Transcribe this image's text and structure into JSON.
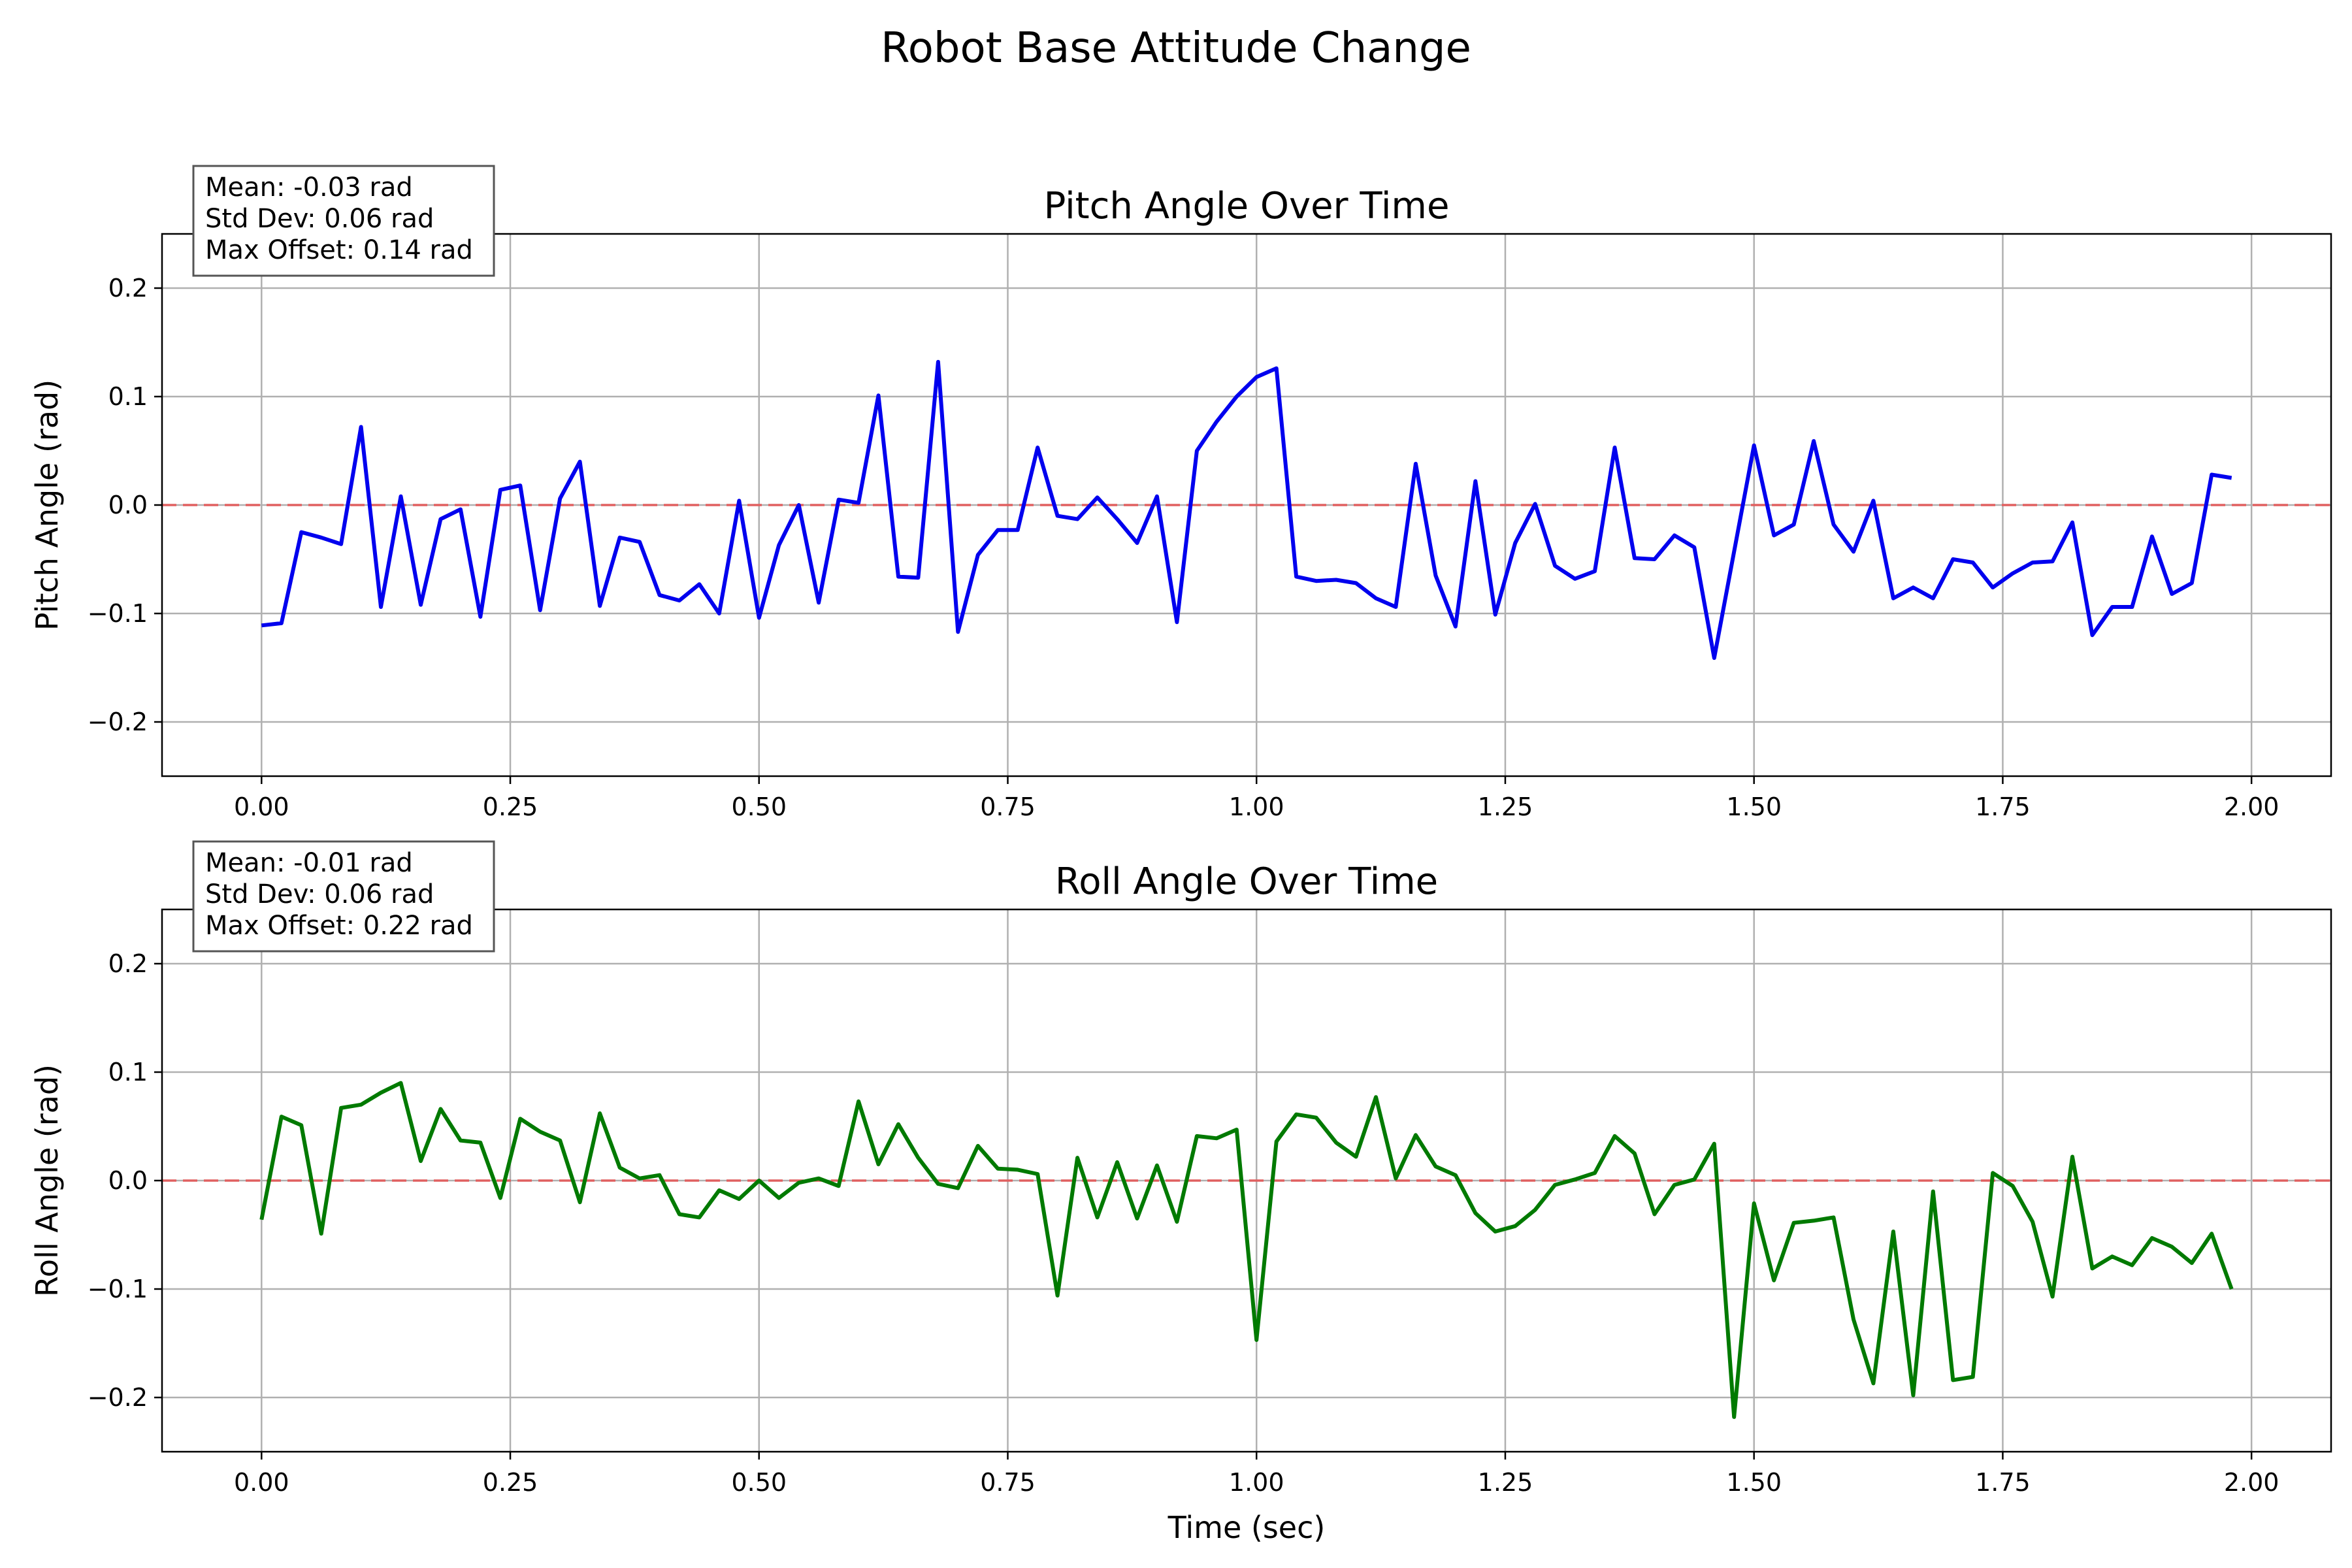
{
  "figure": {
    "title": "Robot Base Attitude Change",
    "xlabel": "Time (sec)"
  },
  "chart_data": [
    {
      "type": "line",
      "title": "Pitch Angle Over Time",
      "xlabel": "",
      "ylabel": "Pitch Angle (rad)",
      "xlim": [
        -0.1,
        2.08
      ],
      "ylim": [
        -0.25,
        0.25
      ],
      "x_ticks": [
        "0.00",
        "0.25",
        "0.50",
        "0.75",
        "1.00",
        "1.25",
        "1.50",
        "1.75",
        "2.00"
      ],
      "y_ticks": [
        "-0.2",
        "-0.1",
        "0.0",
        "0.1",
        "0.2"
      ],
      "grid": true,
      "reference_line": {
        "y": 0.0,
        "color": "#e06060",
        "style": "dashed"
      },
      "stats_box": [
        "Mean: -0.03 rad",
        "Std Dev: 0.06 rad",
        "Max Offset: 0.14 rad"
      ],
      "series": [
        {
          "color": "#0000ee",
          "x_start": 0.0,
          "x_step": 0.02,
          "values": [
            -0.111,
            -0.109,
            -0.025,
            -0.03,
            -0.036,
            0.072,
            -0.094,
            0.008,
            -0.092,
            -0.013,
            -0.004,
            -0.103,
            0.014,
            0.018,
            -0.097,
            0.006,
            0.04,
            -0.093,
            -0.03,
            -0.034,
            -0.083,
            -0.088,
            -0.073,
            -0.1,
            0.004,
            -0.104,
            -0.037,
            0.0,
            -0.09,
            0.005,
            0.002,
            0.101,
            -0.066,
            -0.067,
            0.132,
            -0.117,
            -0.046,
            -0.023,
            -0.023,
            0.053,
            -0.01,
            -0.013,
            0.007,
            -0.013,
            -0.035,
            0.008,
            -0.108,
            0.05,
            0.077,
            0.1,
            0.118,
            0.126,
            -0.066,
            -0.07,
            -0.069,
            -0.072,
            -0.086,
            -0.094,
            0.038,
            -0.065,
            -0.112,
            0.022,
            -0.101,
            -0.035,
            0.001,
            -0.056,
            -0.068,
            -0.061,
            0.053,
            -0.049,
            -0.05,
            -0.028,
            -0.039,
            -0.141,
            -0.043,
            0.055,
            -0.028,
            -0.018,
            0.059,
            -0.018,
            -0.043,
            0.004,
            -0.086,
            -0.076,
            -0.086,
            -0.05,
            -0.053,
            -0.076,
            -0.063,
            -0.053,
            -0.052,
            -0.016,
            -0.12,
            -0.094,
            -0.094,
            -0.029,
            -0.082,
            -0.072,
            0.028,
            0.025
          ]
        }
      ]
    },
    {
      "type": "line",
      "title": "Roll Angle Over Time",
      "xlabel": "Time (sec)",
      "ylabel": "Roll Angle (rad)",
      "xlim": [
        -0.1,
        2.08
      ],
      "ylim": [
        -0.25,
        0.25
      ],
      "x_ticks": [
        "0.00",
        "0.25",
        "0.50",
        "0.75",
        "1.00",
        "1.25",
        "1.50",
        "1.75",
        "2.00"
      ],
      "y_ticks": [
        "-0.2",
        "-0.1",
        "0.0",
        "0.1",
        "0.2"
      ],
      "grid": true,
      "reference_line": {
        "y": 0.0,
        "color": "#e06060",
        "style": "dashed"
      },
      "stats_box": [
        "Mean: -0.01 rad",
        "Std Dev: 0.06 rad",
        "Max Offset: 0.22 rad"
      ],
      "series": [
        {
          "color": "#007a00",
          "x_start": 0.0,
          "x_step": 0.02,
          "values": [
            -0.036,
            0.059,
            0.051,
            -0.049,
            0.067,
            0.07,
            0.081,
            0.09,
            0.018,
            0.066,
            0.037,
            0.035,
            -0.016,
            0.057,
            0.045,
            0.037,
            -0.02,
            0.062,
            0.012,
            0.002,
            0.005,
            -0.031,
            -0.034,
            -0.009,
            -0.017,
            0.0,
            -0.016,
            -0.002,
            0.002,
            -0.005,
            0.073,
            0.015,
            0.052,
            0.021,
            -0.003,
            -0.007,
            0.032,
            0.011,
            0.01,
            0.006,
            -0.106,
            0.021,
            -0.034,
            0.017,
            -0.035,
            0.014,
            -0.038,
            0.041,
            0.039,
            0.047,
            -0.147,
            0.036,
            0.061,
            0.058,
            0.035,
            0.022,
            0.077,
            0.002,
            0.042,
            0.013,
            0.005,
            -0.03,
            -0.047,
            -0.042,
            -0.027,
            -0.004,
            0.001,
            0.007,
            0.041,
            0.025,
            -0.031,
            -0.004,
            0.001,
            0.034,
            -0.218,
            -0.021,
            -0.092,
            -0.039,
            -0.037,
            -0.034,
            -0.128,
            -0.187,
            -0.047,
            -0.198,
            -0.01,
            -0.184,
            -0.181,
            0.007,
            -0.005,
            -0.038,
            -0.107,
            0.022,
            -0.081,
            -0.07,
            -0.078,
            -0.053,
            -0.061,
            -0.076,
            -0.049,
            -0.1
          ]
        }
      ]
    }
  ]
}
